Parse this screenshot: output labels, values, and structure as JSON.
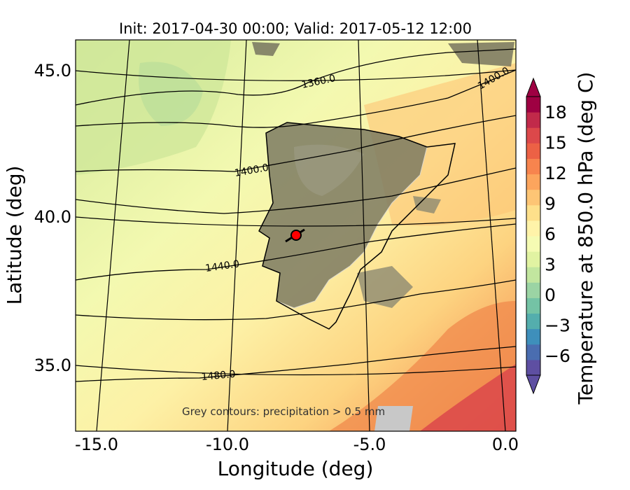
{
  "title": "Init: 2017-04-30 00:00; Valid: 2017-05-12 12:00",
  "xlabel": "Longitude (deg)",
  "ylabel": "Latitude (deg)",
  "x_ticks": [
    "-15.0",
    "-10.0",
    "-5.0",
    "0.0"
  ],
  "y_ticks": [
    "45.0",
    "40.0",
    "35.0"
  ],
  "colorbar": {
    "label": "Temperature at 850.0 hPa (deg C)",
    "ticks": [
      "18",
      "15",
      "12",
      "9",
      "6",
      "3",
      "0",
      "−3",
      "−6"
    ],
    "colors": [
      "#5e4fa2",
      "#4a6db0",
      "#3e8fbb",
      "#54aead",
      "#74c3a5",
      "#9bd4a4",
      "#c2e69f",
      "#e1f3a2",
      "#f5fbb3",
      "#fff3a9",
      "#fee08b",
      "#fdc575",
      "#fca55d",
      "#f7844e",
      "#ec6145",
      "#dc484a",
      "#c12a4a",
      "#9e0142"
    ]
  },
  "contour_labels": [
    "1360.0",
    "1400.0",
    "1400.0",
    "1440.0",
    "1480.0"
  ],
  "annotation": "Grey contours: precipitation  > 0.5 mm",
  "marker_color": "#ff0000"
}
